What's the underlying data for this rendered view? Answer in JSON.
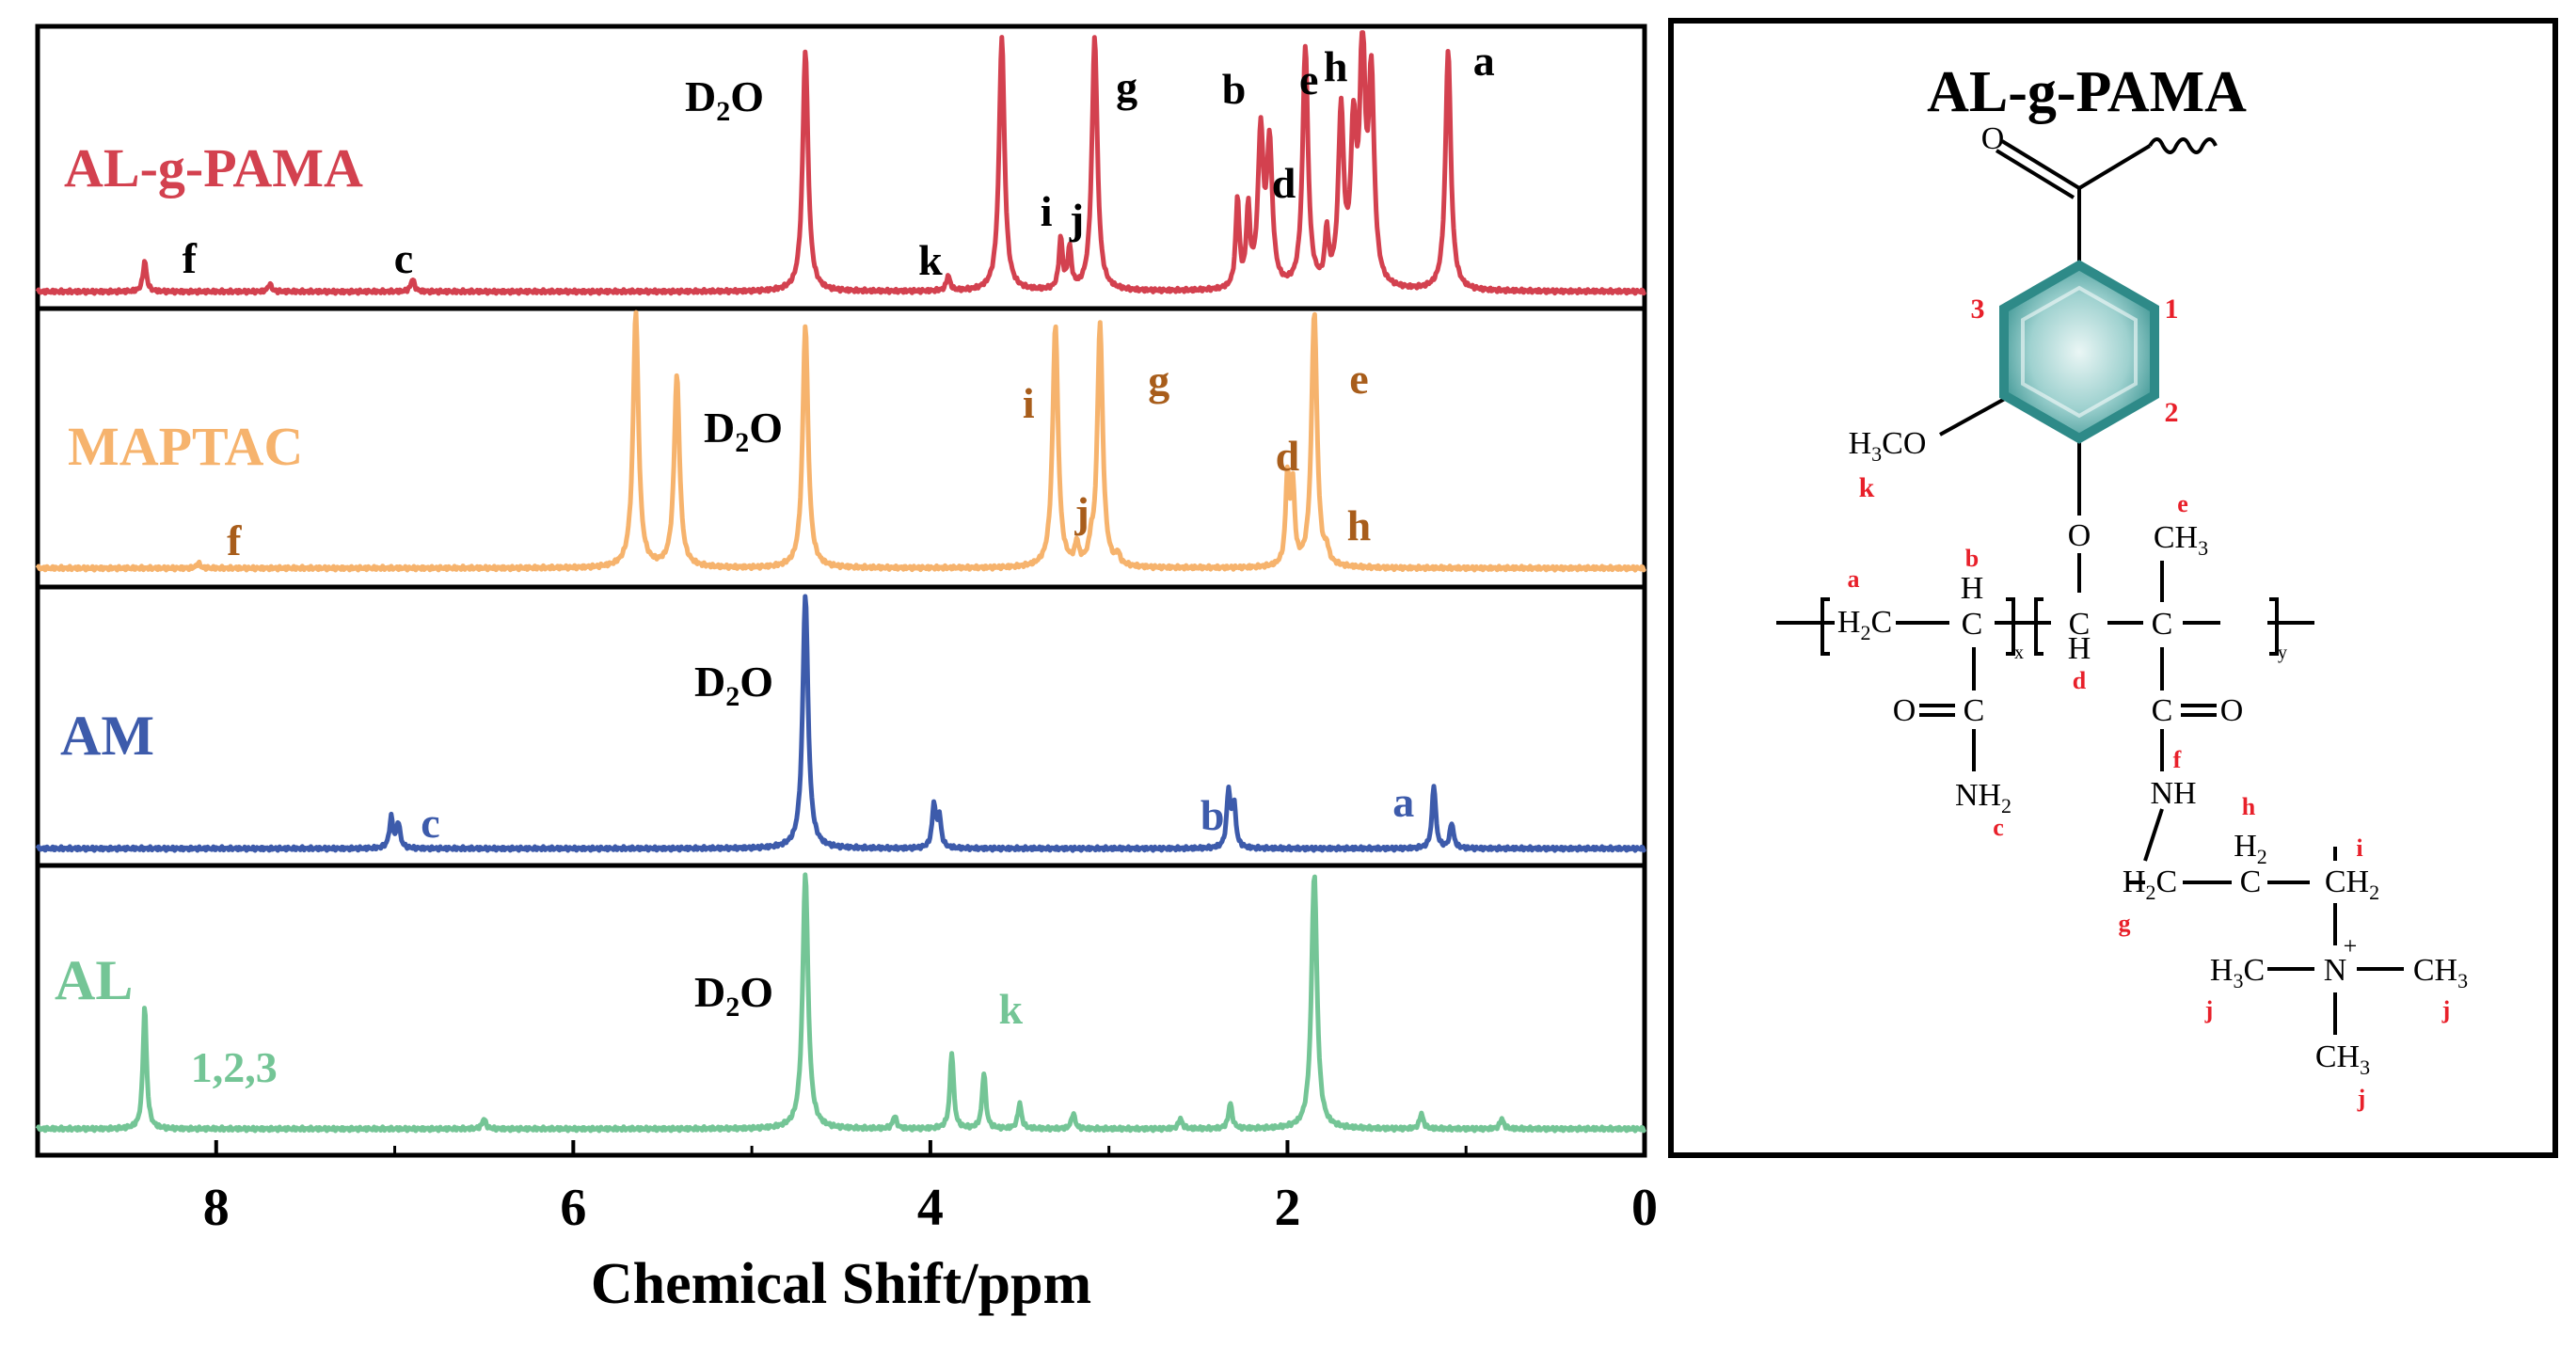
{
  "chart_data": {
    "type": "line",
    "title": "",
    "xlabel": "Chemical Shift/ppm",
    "ylabel": "",
    "xlim": [
      9,
      0
    ],
    "x_ticks": [
      "8",
      "6",
      "4",
      "2",
      "0"
    ],
    "grid": false,
    "solvent_label": "D2O",
    "series": [
      {
        "name": "AL-g-PAMA",
        "color": "#d3414f",
        "label_color": "#000000",
        "peaks": [
          {
            "x": 8.4,
            "h": 0.12
          },
          {
            "x": 7.7,
            "h": 0.03
          },
          {
            "x": 6.9,
            "h": 0.05
          },
          {
            "x": 4.7,
            "h": 0.95
          },
          {
            "x": 3.9,
            "h": 0.06
          },
          {
            "x": 3.6,
            "h": 1.0
          },
          {
            "x": 3.27,
            "h": 0.2
          },
          {
            "x": 3.22,
            "h": 0.16
          },
          {
            "x": 3.08,
            "h": 1.0
          },
          {
            "x": 2.28,
            "h": 0.35
          },
          {
            "x": 2.22,
            "h": 0.3
          },
          {
            "x": 2.15,
            "h": 0.6
          },
          {
            "x": 2.1,
            "h": 0.55
          },
          {
            "x": 1.9,
            "h": 0.95
          },
          {
            "x": 1.78,
            "h": 0.2
          },
          {
            "x": 1.7,
            "h": 0.68
          },
          {
            "x": 1.63,
            "h": 0.58
          },
          {
            "x": 1.58,
            "h": 0.92
          },
          {
            "x": 1.53,
            "h": 0.8
          },
          {
            "x": 1.1,
            "h": 0.95
          }
        ],
        "labels": [
          {
            "text": "f",
            "x": 8.15
          },
          {
            "text": "c",
            "x": 6.95
          },
          {
            "text": "k",
            "x": 4.0
          },
          {
            "text": "i",
            "x": 3.35
          },
          {
            "text": "j",
            "x": 3.18
          },
          {
            "text": "g",
            "x": 2.9
          },
          {
            "text": "b",
            "x": 2.3
          },
          {
            "text": "d",
            "x": 2.02
          },
          {
            "text": "e",
            "x": 1.88
          },
          {
            "text": "h",
            "x": 1.73
          },
          {
            "text": "a",
            "x": 0.9
          }
        ]
      },
      {
        "name": "MAPTAC",
        "color": "#f6b36d",
        "label_color": "#a85d1b",
        "peaks": [
          {
            "x": 8.1,
            "h": 0.02
          },
          {
            "x": 5.65,
            "h": 1.0
          },
          {
            "x": 5.42,
            "h": 0.75
          },
          {
            "x": 4.7,
            "h": 0.95
          },
          {
            "x": 3.3,
            "h": 0.95
          },
          {
            "x": 3.18,
            "h": 0.08
          },
          {
            "x": 3.1,
            "h": 0.06
          },
          {
            "x": 3.05,
            "h": 0.95
          },
          {
            "x": 2.95,
            "h": 0.04
          },
          {
            "x": 2.0,
            "h": 0.35
          },
          {
            "x": 1.97,
            "h": 0.3
          },
          {
            "x": 1.85,
            "h": 1.0
          },
          {
            "x": 1.78,
            "h": 0.05
          }
        ],
        "labels": [
          {
            "text": "f",
            "x": 7.9
          },
          {
            "text": "i",
            "x": 3.45
          },
          {
            "text": "j",
            "x": 3.15
          },
          {
            "text": "g",
            "x": 2.72
          },
          {
            "text": "d",
            "x": 2.0
          },
          {
            "text": "e",
            "x": 1.6
          },
          {
            "text": "h",
            "x": 1.6
          }
        ]
      },
      {
        "name": "AM",
        "color": "#3d5bab",
        "label_color": "#3d5bab",
        "peaks": [
          {
            "x": 7.02,
            "h": 0.12
          },
          {
            "x": 6.98,
            "h": 0.1
          },
          {
            "x": 4.7,
            "h": 1.0
          },
          {
            "x": 3.98,
            "h": 0.17
          },
          {
            "x": 3.95,
            "h": 0.12
          },
          {
            "x": 2.33,
            "h": 0.22
          },
          {
            "x": 2.3,
            "h": 0.17
          },
          {
            "x": 1.18,
            "h": 0.25
          },
          {
            "x": 1.08,
            "h": 0.1
          }
        ],
        "labels": [
          {
            "text": "c",
            "x": 6.8
          },
          {
            "text": "b",
            "x": 2.42
          },
          {
            "text": "a",
            "x": 1.35
          }
        ]
      },
      {
        "name": "AL",
        "color": "#74c596",
        "label_color": "#74c596",
        "peaks": [
          {
            "x": 8.4,
            "h": 0.48
          },
          {
            "x": 6.5,
            "h": 0.04
          },
          {
            "x": 4.7,
            "h": 1.0
          },
          {
            "x": 4.2,
            "h": 0.05
          },
          {
            "x": 3.88,
            "h": 0.3
          },
          {
            "x": 3.7,
            "h": 0.22
          },
          {
            "x": 3.5,
            "h": 0.1
          },
          {
            "x": 3.2,
            "h": 0.06
          },
          {
            "x": 2.6,
            "h": 0.04
          },
          {
            "x": 2.32,
            "h": 0.1
          },
          {
            "x": 1.85,
            "h": 1.0
          },
          {
            "x": 1.25,
            "h": 0.06
          },
          {
            "x": 0.8,
            "h": 0.04
          }
        ],
        "labels": [
          {
            "text": "1,2,3",
            "x": 7.9
          },
          {
            "text": "k",
            "x": 3.55
          }
        ]
      }
    ]
  },
  "structure": {
    "title": "AL-g-PAMA",
    "atoms": {
      "o_top": "O",
      "h3co": "H3CO",
      "o_link": "O",
      "ch3": "CH3",
      "h2c": "H2C",
      "ch_b": "H",
      "ch_d": "H",
      "c_label": "C",
      "o_amide1": "O",
      "c_amide1": "C",
      "o_amide2": "O",
      "c_amide2": "C",
      "nh2": "NH2",
      "nh": "NH",
      "h2c_g": "H2C",
      "h2_h": "H2",
      "ch2_i": "CH2",
      "n_plus": "N",
      "plus": "+",
      "h3c_left": "H3C",
      "ch3_right": "CH3",
      "ch3_bottom": "CH3",
      "sub_x": "x",
      "sub_y": "y"
    },
    "markers": {
      "ring1": "1",
      "ring2": "2",
      "ring3": "3",
      "k": "k",
      "a": "a",
      "b": "b",
      "c": "c",
      "d": "d",
      "e": "e",
      "f": "f",
      "g": "g",
      "h": "h",
      "i": "i",
      "j1": "j",
      "j2": "j",
      "j3": "j"
    },
    "colors": {
      "marker": "#e8202a",
      "ring": "#3e9e9c",
      "ring_light": "#cbe8e7",
      "ink": "#000000"
    }
  }
}
